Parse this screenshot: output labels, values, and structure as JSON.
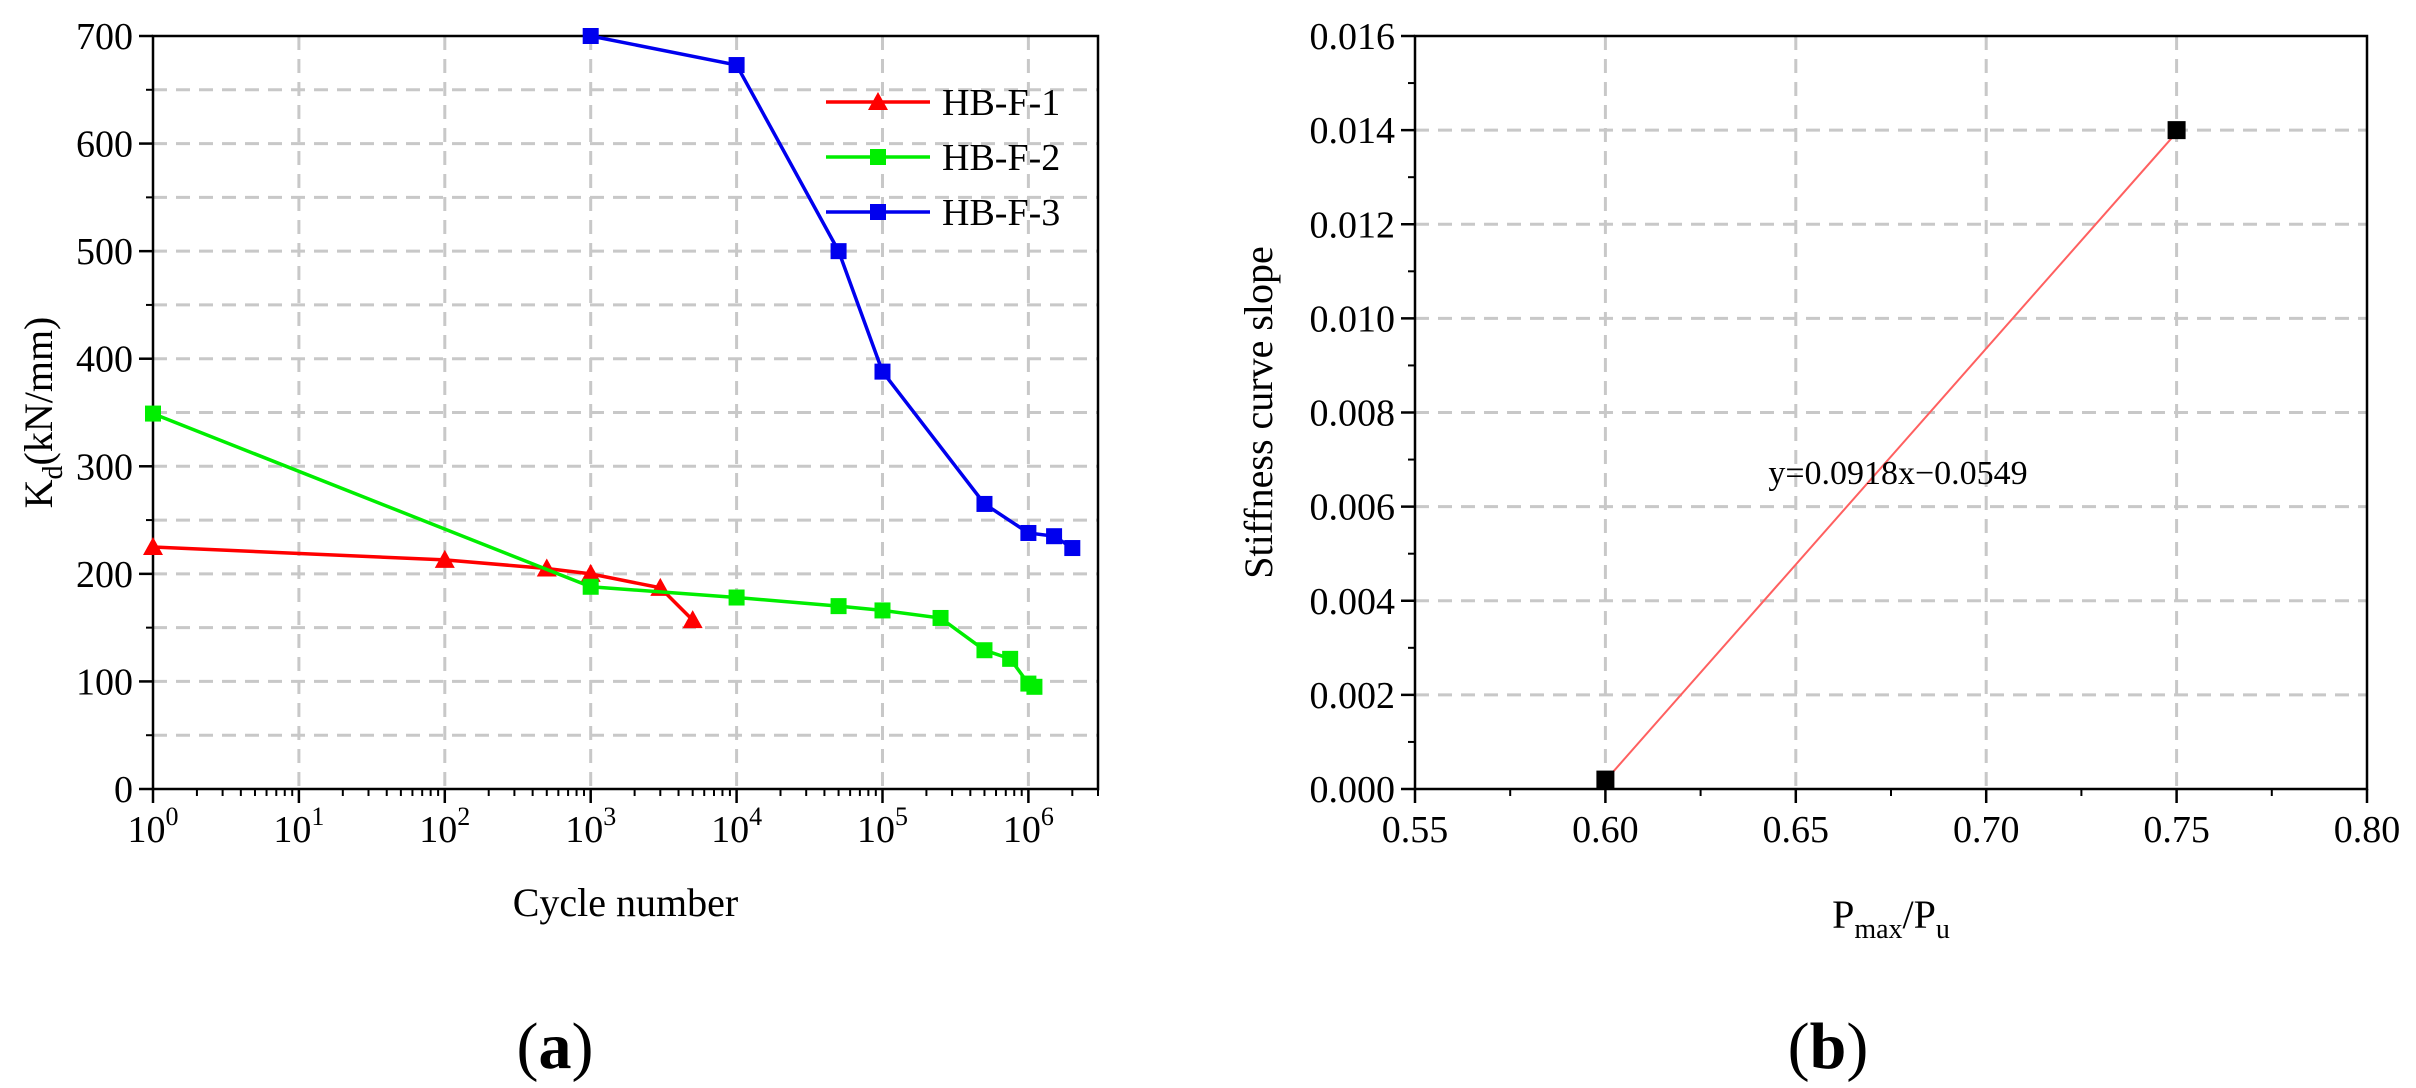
{
  "colors": {
    "series_red": "#ff0000",
    "series_green": "#00ee00",
    "series_blue": "#0000ee",
    "grid": "#c8c8c8",
    "fit_line": "#ff6060",
    "marker_black": "#000000"
  },
  "chart_data": [
    {
      "panel_label": "a",
      "type": "line",
      "xscale": "log",
      "xlabel": "Cycle number",
      "ylabel": "K",
      "ylabel_sub": "d",
      "ylabel_unit": "(kN/mm)",
      "xlim": [
        1,
        3000000
      ],
      "ylim": [
        0,
        700
      ],
      "y_ticks": [
        0,
        100,
        200,
        300,
        400,
        500,
        600,
        700
      ],
      "x_ticks": [
        {
          "value": 1,
          "base": "10",
          "exp": "0"
        },
        {
          "value": 10,
          "base": "10",
          "exp": "1"
        },
        {
          "value": 100,
          "base": "10",
          "exp": "2"
        },
        {
          "value": 1000,
          "base": "10",
          "exp": "3"
        },
        {
          "value": 10000,
          "base": "10",
          "exp": "4"
        },
        {
          "value": 100000,
          "base": "10",
          "exp": "5"
        },
        {
          "value": 1000000,
          "base": "10",
          "exp": "6"
        }
      ],
      "grid": true,
      "legend_position": "top-right",
      "series": [
        {
          "name": "HB-F-1",
          "color": "#ff0000",
          "marker": "triangle",
          "x": [
            1,
            100,
            500,
            1000,
            3000,
            5000
          ],
          "y": [
            225,
            213,
            205,
            200,
            187,
            157
          ]
        },
        {
          "name": "HB-F-2",
          "color": "#00ee00",
          "marker": "square",
          "x": [
            1,
            1000,
            10000,
            50000,
            100000,
            250000,
            500000,
            750000,
            1000000,
            1100000
          ],
          "y": [
            349,
            188,
            178,
            170,
            166,
            159,
            129,
            121,
            98,
            95
          ]
        },
        {
          "name": "HB-F-3",
          "color": "#0000ee",
          "marker": "square",
          "x": [
            1000,
            10000,
            50000,
            100000,
            500000,
            1000000,
            1500000,
            2000000
          ],
          "y": [
            700,
            673,
            500,
            388,
            265,
            238,
            235,
            224
          ]
        }
      ]
    },
    {
      "panel_label": "b",
      "type": "scatter",
      "xlabel": "P",
      "xlabel_sub1": "max",
      "xlabel_slash": "/P",
      "xlabel_sub2": "u",
      "ylabel": "Stiffness curve slope",
      "xlim": [
        0.55,
        0.8
      ],
      "ylim": [
        0,
        0.016
      ],
      "x_ticks": [
        "0.55",
        "0.60",
        "0.65",
        "0.70",
        "0.75",
        "0.80"
      ],
      "y_ticks": [
        "0.000",
        "0.002",
        "0.004",
        "0.006",
        "0.008",
        "0.010",
        "0.012",
        "0.014",
        "0.016"
      ],
      "grid": true,
      "points": {
        "x": [
          0.6,
          0.75
        ],
        "y": [
          0.0002,
          0.014
        ]
      },
      "fit": {
        "label": "y=0.0918x−0.0549",
        "slope": 0.0918,
        "intercept": -0.0549,
        "x_from": 0.6,
        "x_to": 0.75
      }
    }
  ]
}
